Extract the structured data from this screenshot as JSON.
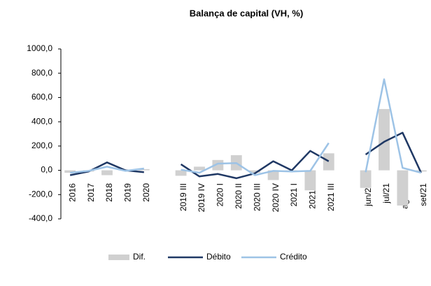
{
  "chart_data": {
    "type": "bar_line",
    "title": "Balança de capital (VH, %)",
    "categories": [
      "2016",
      "2017",
      "2018",
      "2019",
      "2020",
      null,
      "2019 III",
      "2019 IV",
      "2020 I",
      "2020 II",
      "2020 III",
      "2020 IV",
      "2021 I",
      "2021 II",
      "2021 III",
      null,
      "jun/21",
      "jul/21",
      "ago/21",
      "set/21"
    ],
    "series": [
      {
        "name": "Dif.",
        "kind": "bar",
        "color": "#d0d0d0",
        "values": [
          -20,
          -10,
          -40,
          0,
          10,
          null,
          -45,
          30,
          85,
          125,
          -20,
          -80,
          -10,
          -165,
          140,
          null,
          -145,
          505,
          -290,
          -10
        ]
      },
      {
        "name": "Débito",
        "kind": "line",
        "color": "#1f3864",
        "values": [
          -40,
          -10,
          65,
          0,
          -15,
          null,
          50,
          -50,
          -30,
          -65,
          -25,
          75,
          0,
          160,
          75,
          null,
          130,
          235,
          310,
          -20
        ]
      },
      {
        "name": "Crédito",
        "kind": "line",
        "color": "#9dc3e6",
        "values": [
          -20,
          -5,
          30,
          -5,
          15,
          null,
          5,
          -20,
          55,
          60,
          -40,
          -5,
          -10,
          -5,
          225,
          null,
          -15,
          750,
          20,
          -20
        ]
      }
    ],
    "ylim": [
      -400,
      1000
    ],
    "yticks": [
      {
        "value": -400,
        "label": "-400,0"
      },
      {
        "value": -200,
        "label": "-200,0"
      },
      {
        "value": 0,
        "label": "0,0"
      },
      {
        "value": 200,
        "label": "200,0"
      },
      {
        "value": 400,
        "label": "400,0"
      },
      {
        "value": 600,
        "label": "600,0"
      },
      {
        "value": 800,
        "label": "800,0"
      },
      {
        "value": 1000,
        "label": "1000,0"
      }
    ],
    "legend": "bottom"
  }
}
